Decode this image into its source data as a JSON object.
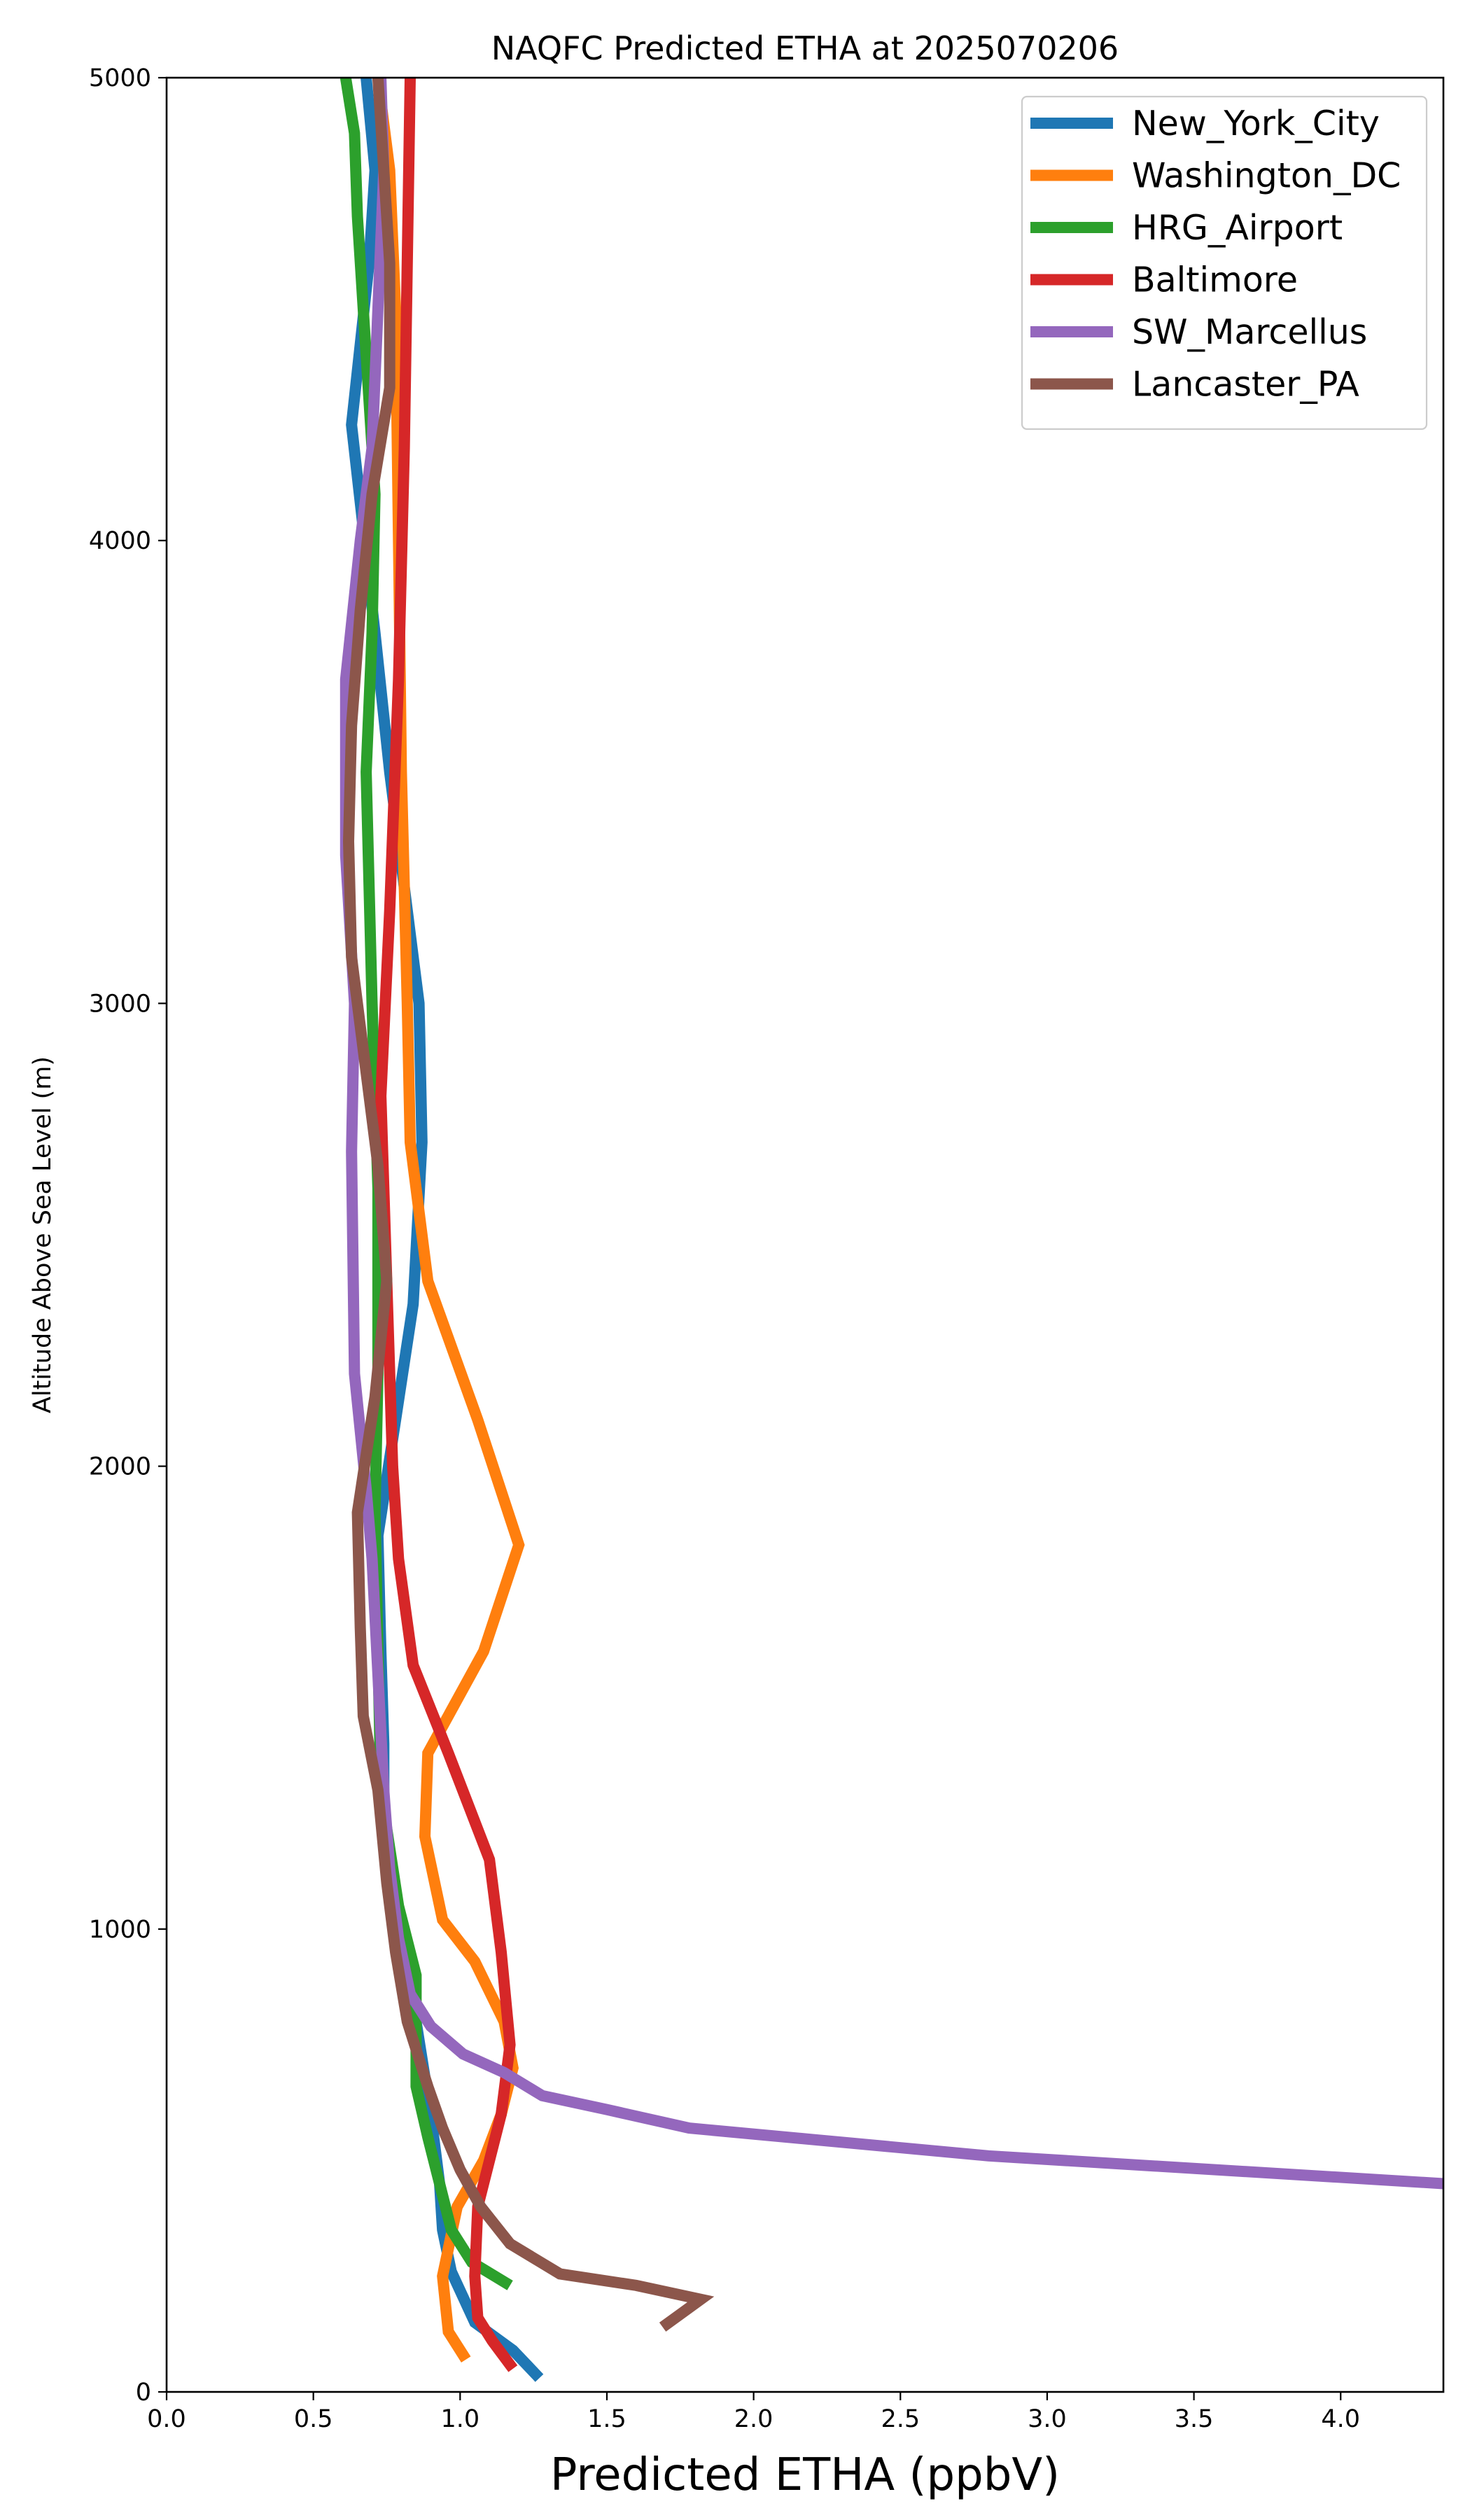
{
  "chart_data": {
    "type": "line",
    "title": "NAQFC Predicted ETHA at 2025070206",
    "xlabel": "Predicted ETHA (ppbV)",
    "ylabel": "Altitude Above Sea Level (m)",
    "xlim": [
      0,
      4.35
    ],
    "ylim": [
      0,
      5000
    ],
    "x_ticks": [
      "0.0",
      "0.5",
      "1.0",
      "1.5",
      "2.0",
      "2.5",
      "3.0",
      "3.5",
      "4.0"
    ],
    "x_tick_values": [
      0,
      0.5,
      1.0,
      1.5,
      2.0,
      2.5,
      3.0,
      3.5,
      4.0
    ],
    "y_ticks": [
      "0",
      "1000",
      "2000",
      "3000",
      "4000",
      "5000"
    ],
    "y_tick_values": [
      0,
      1000,
      2000,
      3000,
      4000,
      5000
    ],
    "grid": false,
    "legend_position": "top-right",
    "series": [
      {
        "name": "New_York_City",
        "color": "#1f77b4",
        "points": [
          [
            1.27,
            30
          ],
          [
            1.18,
            90
          ],
          [
            1.05,
            150
          ],
          [
            0.97,
            260
          ],
          [
            0.94,
            350
          ],
          [
            0.93,
            450
          ],
          [
            0.9,
            600
          ],
          [
            0.85,
            800
          ],
          [
            0.79,
            1000
          ],
          [
            0.74,
            1200
          ],
          [
            0.74,
            1400
          ],
          [
            0.73,
            1600
          ],
          [
            0.72,
            1850
          ],
          [
            0.78,
            2100
          ],
          [
            0.84,
            2350
          ],
          [
            0.87,
            2700
          ],
          [
            0.86,
            3000
          ],
          [
            0.76,
            3500
          ],
          [
            0.71,
            3800
          ],
          [
            0.63,
            4250
          ],
          [
            0.69,
            4600
          ],
          [
            0.71,
            4800
          ],
          [
            0.68,
            5000
          ]
        ]
      },
      {
        "name": "Washington_DC",
        "color": "#ff7f0e",
        "points": [
          [
            1.02,
            70
          ],
          [
            0.96,
            130
          ],
          [
            0.94,
            250
          ],
          [
            0.99,
            400
          ],
          [
            1.08,
            500
          ],
          [
            1.14,
            600
          ],
          [
            1.18,
            700
          ],
          [
            1.15,
            800
          ],
          [
            1.05,
            930
          ],
          [
            0.94,
            1020
          ],
          [
            0.88,
            1200
          ],
          [
            0.89,
            1380
          ],
          [
            1.08,
            1600
          ],
          [
            1.2,
            1830
          ],
          [
            1.06,
            2100
          ],
          [
            0.89,
            2400
          ],
          [
            0.83,
            2700
          ],
          [
            0.82,
            3000
          ],
          [
            0.8,
            3500
          ],
          [
            0.79,
            4000
          ],
          [
            0.78,
            4500
          ],
          [
            0.76,
            4800
          ],
          [
            0.72,
            5000
          ]
        ]
      },
      {
        "name": "HRG_Airport",
        "color": "#2ca02c",
        "points": [
          [
            1.17,
            230
          ],
          [
            1.04,
            280
          ],
          [
            0.97,
            350
          ],
          [
            0.93,
            450
          ],
          [
            0.89,
            550
          ],
          [
            0.85,
            660
          ],
          [
            0.85,
            900
          ],
          [
            0.79,
            1050
          ],
          [
            0.73,
            1300
          ],
          [
            0.72,
            1600
          ],
          [
            0.71,
            1900
          ],
          [
            0.72,
            2200
          ],
          [
            0.72,
            2600
          ],
          [
            0.7,
            3000
          ],
          [
            0.68,
            3500
          ],
          [
            0.7,
            3800
          ],
          [
            0.71,
            4100
          ],
          [
            0.68,
            4400
          ],
          [
            0.65,
            4700
          ],
          [
            0.64,
            4880
          ],
          [
            0.61,
            5000
          ]
        ]
      },
      {
        "name": "Baltimore",
        "color": "#d62728",
        "points": [
          [
            1.18,
            50
          ],
          [
            1.11,
            110
          ],
          [
            1.06,
            160
          ],
          [
            1.05,
            250
          ],
          [
            1.06,
            400
          ],
          [
            1.1,
            500
          ],
          [
            1.14,
            600
          ],
          [
            1.17,
            750
          ],
          [
            1.14,
            950
          ],
          [
            1.1,
            1150
          ],
          [
            0.96,
            1380
          ],
          [
            0.84,
            1570
          ],
          [
            0.79,
            1800
          ],
          [
            0.77,
            2000
          ],
          [
            0.75,
            2400
          ],
          [
            0.73,
            2800
          ],
          [
            0.76,
            3200
          ],
          [
            0.79,
            3700
          ],
          [
            0.81,
            4200
          ],
          [
            0.82,
            4600
          ],
          [
            0.83,
            5000
          ]
        ]
      },
      {
        "name": "SW_Marcellus",
        "color": "#9467bd",
        "points": [
          [
            4.35,
            450
          ],
          [
            2.8,
            510
          ],
          [
            1.78,
            570
          ],
          [
            1.5,
            610
          ],
          [
            1.28,
            640
          ],
          [
            1.15,
            690
          ],
          [
            1.01,
            730
          ],
          [
            0.9,
            790
          ],
          [
            0.83,
            860
          ],
          [
            0.79,
            980
          ],
          [
            0.76,
            1130
          ],
          [
            0.74,
            1300
          ],
          [
            0.72,
            1550
          ],
          [
            0.7,
            1800
          ],
          [
            0.68,
            1950
          ],
          [
            0.64,
            2200
          ],
          [
            0.63,
            2680
          ],
          [
            0.64,
            3000
          ],
          [
            0.61,
            3320
          ],
          [
            0.61,
            3700
          ],
          [
            0.66,
            4000
          ],
          [
            0.7,
            4200
          ],
          [
            0.72,
            4500
          ],
          [
            0.74,
            4800
          ],
          [
            0.73,
            5000
          ]
        ]
      },
      {
        "name": "Lancaster_PA",
        "color": "#8c564b",
        "points": [
          [
            1.69,
            140
          ],
          [
            1.82,
            200
          ],
          [
            1.6,
            230
          ],
          [
            1.34,
            255
          ],
          [
            1.17,
            320
          ],
          [
            1.07,
            400
          ],
          [
            1.0,
            480
          ],
          [
            0.94,
            570
          ],
          [
            0.89,
            660
          ],
          [
            0.82,
            800
          ],
          [
            0.78,
            950
          ],
          [
            0.75,
            1100
          ],
          [
            0.72,
            1300
          ],
          [
            0.67,
            1460
          ],
          [
            0.66,
            1650
          ],
          [
            0.65,
            1900
          ],
          [
            0.71,
            2150
          ],
          [
            0.75,
            2400
          ],
          [
            0.72,
            2650
          ],
          [
            0.67,
            2900
          ],
          [
            0.63,
            3100
          ],
          [
            0.62,
            3350
          ],
          [
            0.63,
            3600
          ],
          [
            0.66,
            3850
          ],
          [
            0.7,
            4100
          ],
          [
            0.76,
            4330
          ],
          [
            0.76,
            4600
          ],
          [
            0.74,
            4800
          ],
          [
            0.72,
            5000
          ]
        ]
      }
    ]
  }
}
